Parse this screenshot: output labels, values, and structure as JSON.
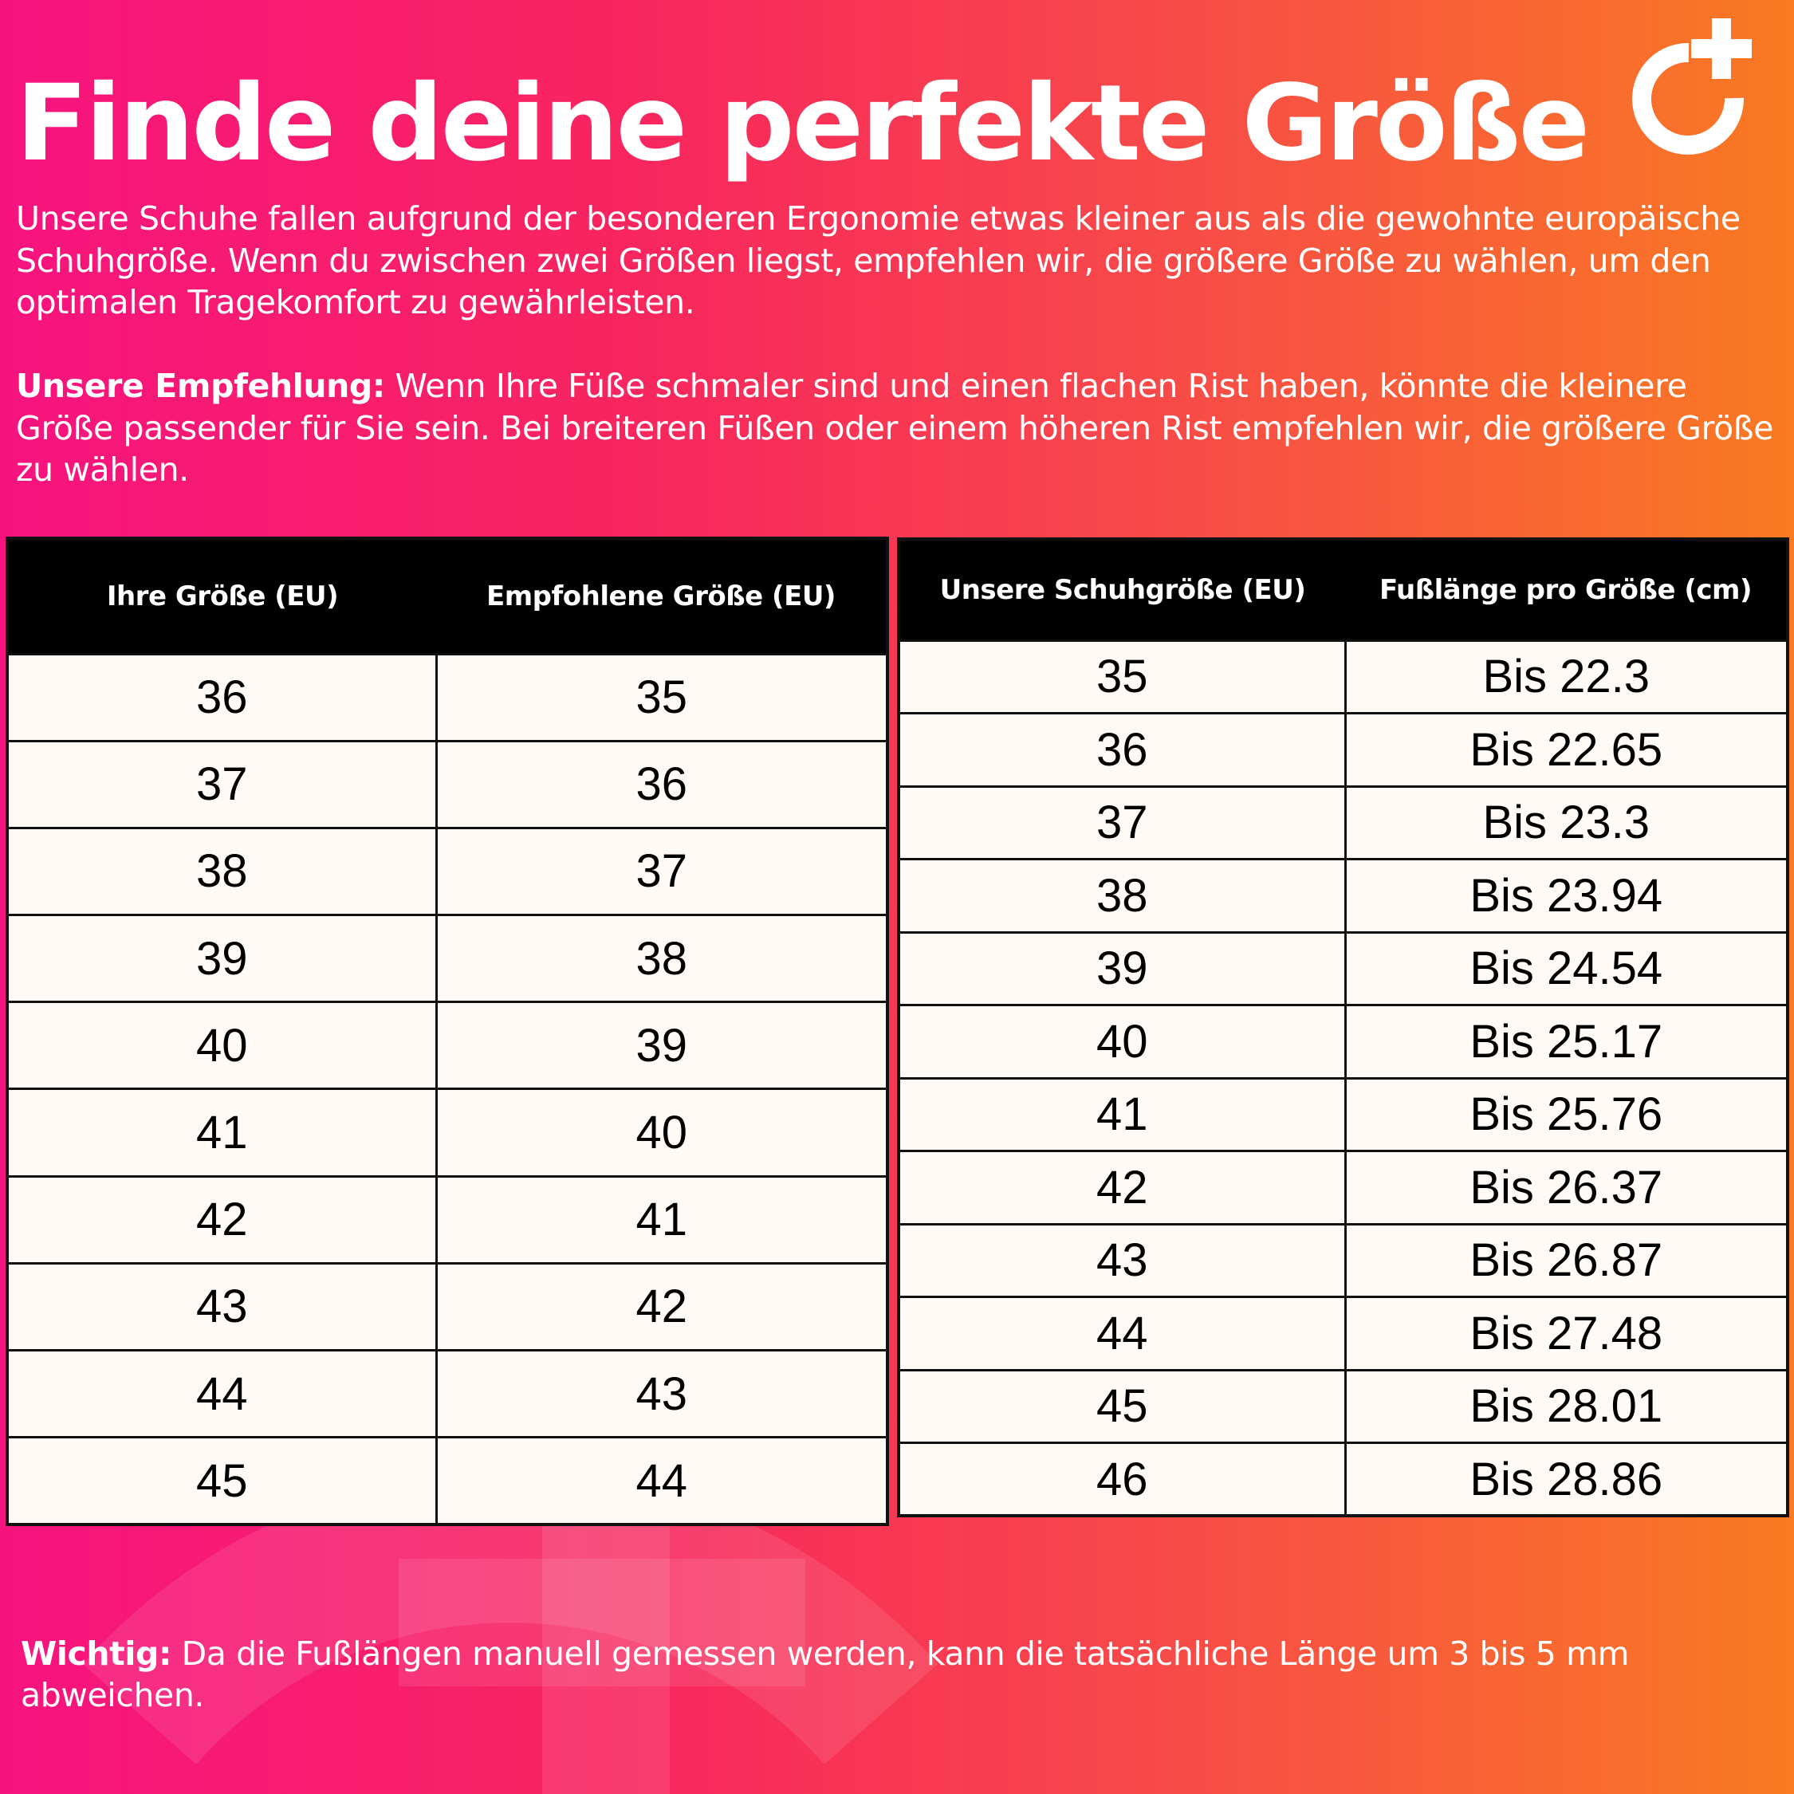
{
  "header": {
    "title": "Finde deine perfekte Größe",
    "logo_icon": "circle-plus-logo"
  },
  "intro": {
    "paragraph": "Unsere Schuhe fallen aufgrund der besonderen Ergonomie etwas kleiner aus als die gewohnte europäische Schuhgröße. Wenn du zwischen zwei Größen liegst, empfehlen wir, die größere Größe zu wählen, um den optimalen Tragekomfort zu gewährleisten.",
    "recommendation_label": "Unsere Empfehlung:",
    "recommendation_text": " Wenn Ihre Füße schmaler sind und einen flachen Rist haben, könnte die kleinere Größe passender für Sie sein. Bei breiteren Füßen oder einem höheren Rist empfehlen wir, die größere Größe zu wählen."
  },
  "conversion_table": {
    "headers": [
      "Ihre Größe (EU)",
      "Empfohlene Größe (EU)"
    ],
    "rows": [
      [
        "36",
        "35"
      ],
      [
        "37",
        "36"
      ],
      [
        "38",
        "37"
      ],
      [
        "39",
        "38"
      ],
      [
        "40",
        "39"
      ],
      [
        "41",
        "40"
      ],
      [
        "42",
        "41"
      ],
      [
        "43",
        "42"
      ],
      [
        "44",
        "43"
      ],
      [
        "45",
        "44"
      ]
    ]
  },
  "length_table": {
    "headers": [
      "Unsere Schuhgröße (EU)",
      "Fußlänge pro Größe (cm)"
    ],
    "rows": [
      [
        "35",
        "Bis 22.3"
      ],
      [
        "36",
        "Bis 22.65"
      ],
      [
        "37",
        "Bis 23.3"
      ],
      [
        "38",
        "Bis 23.94"
      ],
      [
        "39",
        "Bis 24.54"
      ],
      [
        "40",
        "Bis 25.17"
      ],
      [
        "41",
        "Bis 25.76"
      ],
      [
        "42",
        "Bis 26.37"
      ],
      [
        "43",
        "Bis 26.87"
      ],
      [
        "44",
        "Bis 27.48"
      ],
      [
        "45",
        "Bis 28.01"
      ],
      [
        "46",
        "Bis 28.86"
      ]
    ]
  },
  "footer": {
    "label": "Wichtig:",
    "text": " Da die Fußlängen manuell gemessen werden, kann die tatsächliche Länge um 3 bis 5 mm abweichen."
  },
  "colors": {
    "gradient_left": "#f7137f",
    "gradient_right": "#f97a22",
    "table_header": "#000000",
    "table_cell": "#fffaf6"
  }
}
